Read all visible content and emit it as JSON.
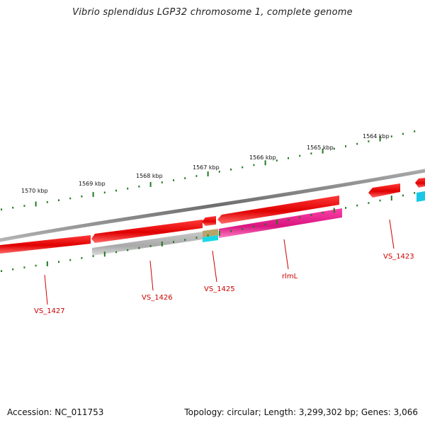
{
  "title": "Vibrio splendidus LGP32 chromosome 1, complete genome",
  "footer": {
    "accession": "Accession: NC_011753",
    "summary": "Topology: circular; Length: 3,299,302 bp; Genes: 3,066"
  },
  "scale_labels": [
    "1570 kbp",
    "1569 kbp",
    "1568 kbp",
    "1567 kbp",
    "1566 kbp",
    "1565 kbp",
    "1564 kbp"
  ],
  "genes": [
    {
      "label": "VS_1427"
    },
    {
      "label": "VS_1426"
    },
    {
      "label": "VS_1425"
    },
    {
      "label": "rlmL"
    },
    {
      "label": "VS_1423"
    }
  ],
  "colors": {
    "backbone": "#808080",
    "gene_forward": "#ee0000",
    "gene_gray": "#bdbdbd",
    "gene_magenta": "#e6198c",
    "gene_khaki": "#b5a36a",
    "gene_cyan": "#19d8e6",
    "ticks": "#1f7a1f",
    "leader": "#cc0000"
  }
}
